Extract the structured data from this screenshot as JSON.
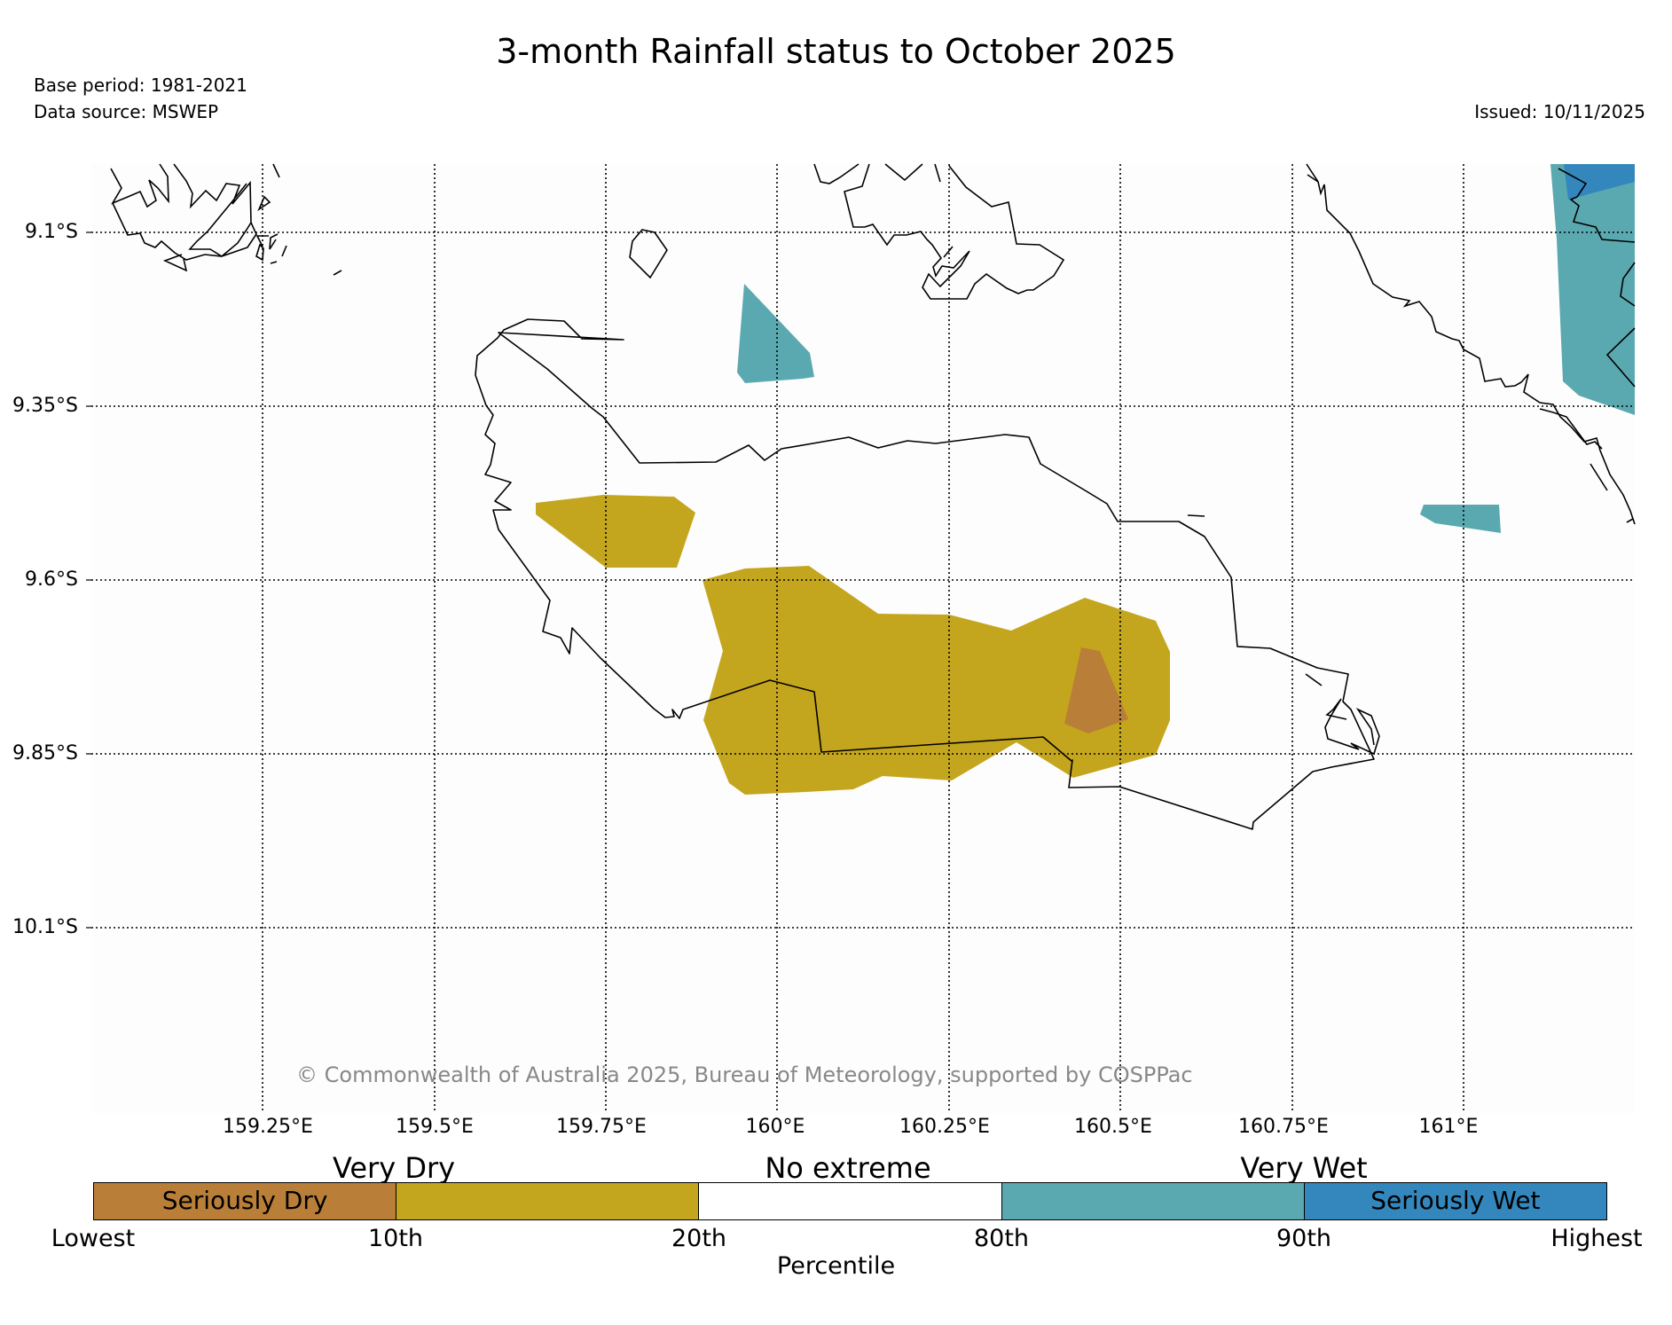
{
  "title": "3-month Rainfall status to October 2025",
  "base_period": "Base period: 1981-2021",
  "data_source": "Data source: MSWEP",
  "issued": "Issued: 10/11/2025",
  "copyright": "© Commonwealth of Australia 2025, Bureau of Meteorology, supported by COSPPac",
  "latitude_labels": [
    "9.1°S",
    "9.35°S",
    "9.6°S",
    "9.85°S",
    "10.1°S"
  ],
  "longitude_labels": [
    "159.25°E",
    "159.5°E",
    "159.75°E",
    "160°E",
    "160.25°E",
    "160.5°E",
    "160.75°E",
    "161°E"
  ],
  "legend": {
    "categories": [
      "Very Dry",
      "No extreme",
      "Very Wet"
    ],
    "boxes": [
      {
        "label": "Seriously Dry",
        "color": "#b97f38"
      },
      {
        "label": "",
        "color": "#c4a61e"
      },
      {
        "label": "",
        "color": "#ffffff"
      },
      {
        "label": "",
        "color": "#5ba9b0"
      },
      {
        "label": "Seriously Wet",
        "color": "#3387bc"
      }
    ],
    "ticks": [
      "Lowest",
      "10th",
      "20th",
      "80th",
      "90th",
      "Highest"
    ],
    "axis_label": "Percentile"
  },
  "colors": {
    "seriously_dry": "#b97f38",
    "very_dry": "#c4a61e",
    "very_wet": "#5ba9b0",
    "seriously_wet": "#3387bc",
    "copyright_text": "#888888"
  }
}
